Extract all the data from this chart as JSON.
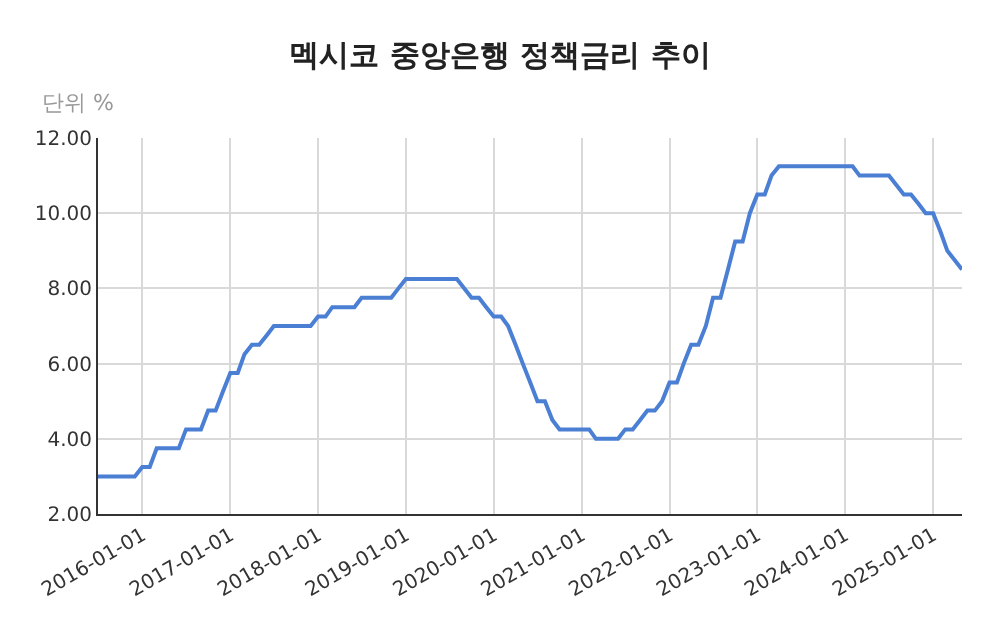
{
  "chart_data": {
    "type": "line",
    "title": "멕시코 중앙은행 정책금리 추이",
    "ylabel": "단위 %",
    "x": [
      "2015-07-01",
      "2015-12-01",
      "2016-01-01",
      "2016-02-01",
      "2016-03-01",
      "2016-06-01",
      "2016-07-01",
      "2016-09-01",
      "2016-10-01",
      "2016-11-01",
      "2016-12-01",
      "2017-01-01",
      "2017-02-01",
      "2017-03-01",
      "2017-04-01",
      "2017-05-01",
      "2017-06-01",
      "2017-07-01",
      "2017-12-01",
      "2018-01-01",
      "2018-02-01",
      "2018-03-01",
      "2018-06-01",
      "2018-07-01",
      "2018-11-01",
      "2018-12-01",
      "2019-01-01",
      "2019-08-01",
      "2019-09-01",
      "2019-10-01",
      "2019-11-01",
      "2019-12-01",
      "2020-01-01",
      "2020-02-01",
      "2020-03-01",
      "2020-04-01",
      "2020-05-01",
      "2020-06-01",
      "2020-07-01",
      "2020-08-01",
      "2020-09-01",
      "2020-10-01",
      "2021-02-01",
      "2021-03-01",
      "2021-06-01",
      "2021-07-01",
      "2021-08-01",
      "2021-09-01",
      "2021-10-01",
      "2021-11-01",
      "2021-12-01",
      "2022-01-01",
      "2022-02-01",
      "2022-03-01",
      "2022-04-01",
      "2022-05-01",
      "2022-06-01",
      "2022-07-01",
      "2022-08-01",
      "2022-09-01",
      "2022-10-01",
      "2022-11-01",
      "2022-12-01",
      "2023-01-01",
      "2023-02-01",
      "2023-03-01",
      "2023-04-01",
      "2024-02-01",
      "2024-03-01",
      "2024-07-01",
      "2024-08-01",
      "2024-09-01",
      "2024-10-01",
      "2024-11-01",
      "2024-12-01",
      "2025-01-01",
      "2025-02-01",
      "2025-03-01",
      "2025-04-01",
      "2025-05-01"
    ],
    "series": [
      {
        "color": "#4a7fd4",
        "values": [
          3.0,
          3.0,
          3.25,
          3.25,
          3.75,
          3.75,
          4.25,
          4.25,
          4.75,
          4.75,
          5.25,
          5.75,
          5.75,
          6.25,
          6.5,
          6.5,
          6.75,
          7.0,
          7.0,
          7.25,
          7.25,
          7.5,
          7.5,
          7.75,
          7.75,
          8.0,
          8.25,
          8.25,
          8.0,
          7.75,
          7.75,
          7.5,
          7.25,
          7.25,
          7.0,
          6.5,
          6.0,
          5.5,
          5.0,
          5.0,
          4.5,
          4.25,
          4.25,
          4.0,
          4.0,
          4.25,
          4.25,
          4.5,
          4.75,
          4.75,
          5.0,
          5.5,
          5.5,
          6.0,
          6.5,
          6.5,
          7.0,
          7.75,
          7.75,
          8.5,
          9.25,
          9.25,
          10.0,
          10.5,
          10.5,
          11.0,
          11.25,
          11.25,
          11.0,
          11.0,
          10.75,
          10.5,
          10.5,
          10.25,
          10.0,
          10.0,
          9.5,
          9.0,
          8.75,
          8.5
        ]
      }
    ],
    "xlim": [
      "2015-07-01",
      "2025-05-01"
    ],
    "xticks": [
      "2016-01-01",
      "2017-01-01",
      "2018-01-01",
      "2019-01-01",
      "2020-01-01",
      "2021-01-01",
      "2022-01-01",
      "2023-01-01",
      "2024-01-01",
      "2025-01-01"
    ],
    "ylim": [
      2,
      12
    ],
    "yticks": [
      {
        "value": 2,
        "label": "2.00"
      },
      {
        "value": 4,
        "label": "4.00"
      },
      {
        "value": 6,
        "label": "6.00"
      },
      {
        "value": 8,
        "label": "8.00"
      },
      {
        "value": 10,
        "label": "10.00"
      },
      {
        "value": 12,
        "label": "12.00"
      }
    ],
    "grid": true,
    "marker": "none",
    "line_style": "solid"
  }
}
